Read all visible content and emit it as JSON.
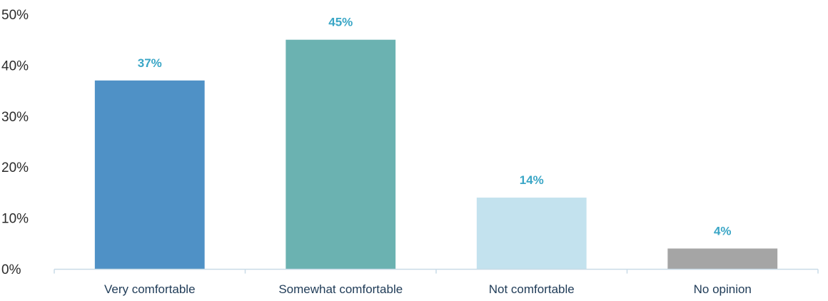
{
  "chart_data": {
    "type": "bar",
    "title": "",
    "xlabel": "",
    "ylabel": "",
    "categories": [
      "Very comfortable",
      "Somewhat comfortable",
      "Not comfortable",
      "No opinion"
    ],
    "values": [
      37,
      45,
      14,
      4
    ],
    "value_labels": [
      "37%",
      "45%",
      "14%",
      "4%"
    ],
    "bar_colors": [
      "#4f91c6",
      "#6bb2b1",
      "#c3e2ee",
      "#a5a5a5"
    ],
    "label_color": "#3aa6c6",
    "ylim": [
      0,
      50
    ],
    "yticks": [
      0,
      10,
      20,
      30,
      40,
      50
    ],
    "ytick_labels": [
      "0%",
      "10%",
      "20%",
      "30%",
      "40%",
      "50%"
    ],
    "grid": false,
    "legend": "none"
  }
}
